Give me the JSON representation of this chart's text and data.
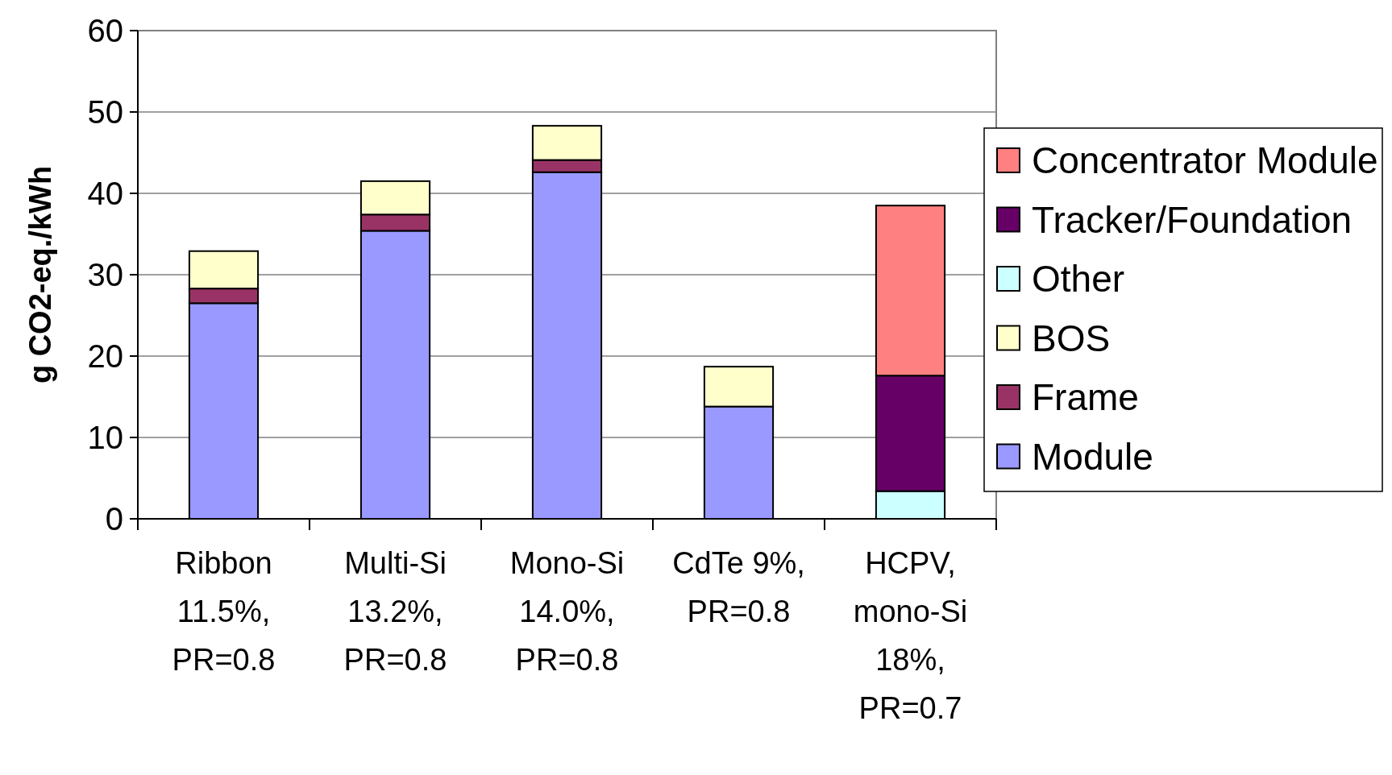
{
  "chart_data": {
    "type": "bar",
    "stacked": true,
    "ylabel": "g CO2-eq./kWh",
    "categories": [
      "Ribbon\n11.5%,\nPR=0.8",
      "Multi-Si\n13.2%,\nPR=0.8",
      "Mono-Si\n14.0%,\nPR=0.8",
      "CdTe 9%,\nPR=0.8",
      "HCPV,\nmono-Si\n18%,\nPR=0.7"
    ],
    "series": [
      {
        "name": "Module",
        "color": "#9999ff",
        "values": [
          26.5,
          35.4,
          42.6,
          13.8,
          null
        ]
      },
      {
        "name": "Frame",
        "color": "#993366",
        "values": [
          1.8,
          2.0,
          1.5,
          null,
          null
        ]
      },
      {
        "name": "BOS",
        "color": "#ffffcc",
        "values": [
          4.6,
          4.1,
          4.2,
          4.9,
          null
        ]
      },
      {
        "name": "Other",
        "color": "#ccffff",
        "values": [
          null,
          null,
          null,
          null,
          3.4
        ]
      },
      {
        "name": "Tracker/Foundation",
        "color": "#660066",
        "values": [
          null,
          null,
          null,
          null,
          14.2
        ]
      },
      {
        "name": "Concentrator Module",
        "color": "#ff8080",
        "values": [
          null,
          null,
          null,
          null,
          20.9
        ]
      }
    ],
    "ylim": [
      0,
      60
    ],
    "yticks": [
      0,
      10,
      20,
      30,
      40,
      50,
      60
    ],
    "grid": "y",
    "legend": "right"
  }
}
